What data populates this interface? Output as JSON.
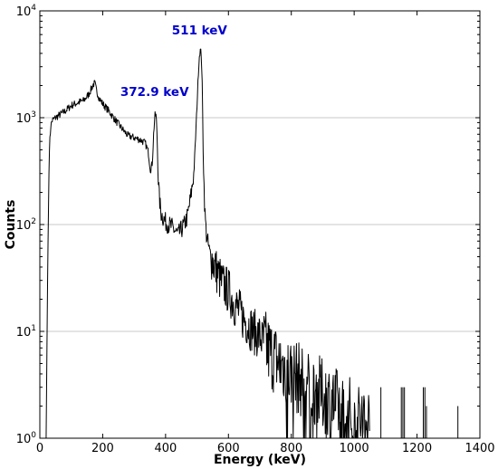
{
  "chart_data": {
    "type": "line",
    "title": "",
    "xlabel": "Energy (keV)",
    "ylabel": "Counts",
    "xlim": [
      0,
      1400
    ],
    "ylim": [
      1,
      10000
    ],
    "yscale": "log",
    "grid": "horizontal",
    "legend": "none",
    "line_color": "#000000",
    "annotation_color": "#0000cc",
    "x_ticks": [
      {
        "value": 0,
        "label": "0"
      },
      {
        "value": 200,
        "label": "200"
      },
      {
        "value": 400,
        "label": "400"
      },
      {
        "value": 600,
        "label": "600"
      },
      {
        "value": 800,
        "label": "800"
      },
      {
        "value": 1000,
        "label": "1000"
      },
      {
        "value": 1200,
        "label": "1200"
      },
      {
        "value": 1400,
        "label": "1400"
      }
    ],
    "y_ticks": [
      {
        "value": 1,
        "mantissa": "10",
        "exp": "0"
      },
      {
        "value": 10,
        "mantissa": "10",
        "exp": "1"
      },
      {
        "value": 100,
        "mantissa": "10",
        "exp": "2"
      },
      {
        "value": 1000,
        "mantissa": "10",
        "exp": "3"
      },
      {
        "value": 10000,
        "mantissa": "10",
        "exp": "4"
      }
    ],
    "annotations": [
      {
        "text": "511 keV",
        "x": 508,
        "y": 6000
      },
      {
        "text": "372.9 keV",
        "x": 365,
        "y": 1600
      }
    ],
    "series": [
      {
        "x": [
          20,
          25,
          30,
          35,
          40,
          50,
          60,
          80,
          100,
          120,
          140,
          155,
          165,
          170,
          175,
          180,
          190,
          200,
          220,
          240,
          260,
          280,
          300,
          320,
          335,
          345,
          352,
          358,
          362,
          366,
          370,
          373,
          376,
          380,
          385,
          390,
          400,
          420,
          440,
          460,
          470,
          480,
          490,
          495,
          500,
          505,
          508,
          511,
          514,
          517,
          520,
          525,
          530,
          540,
          560,
          580,
          600,
          620,
          650,
          680,
          700,
          720,
          750,
          780,
          800,
          830,
          850,
          880,
          900,
          930,
          950,
          980,
          1000,
          1020,
          1050
        ],
        "y": [
          1,
          40,
          500,
          850,
          950,
          1000,
          1050,
          1150,
          1300,
          1380,
          1450,
          1650,
          1900,
          2050,
          2100,
          1800,
          1500,
          1350,
          1150,
          950,
          800,
          680,
          650,
          620,
          580,
          480,
          320,
          380,
          700,
          1050,
          1050,
          700,
          300,
          180,
          130,
          120,
          105,
          95,
          80,
          100,
          120,
          180,
          300,
          600,
          1300,
          2900,
          4000,
          4300,
          3800,
          1800,
          400,
          130,
          80,
          55,
          38,
          28,
          24,
          18,
          13,
          10,
          9,
          7,
          5.5,
          4.5,
          4,
          3.5,
          3,
          2.8,
          2.5,
          2.2,
          2,
          1.8,
          1.6,
          1.5,
          1.4
        ]
      }
    ],
    "spikes": [
      {
        "x": 1085,
        "y": 3
      },
      {
        "x": 1150,
        "y": 3
      },
      {
        "x": 1155,
        "y": 3
      },
      {
        "x": 1160,
        "y": 3
      },
      {
        "x": 1220,
        "y": 3
      },
      {
        "x": 1225,
        "y": 3
      },
      {
        "x": 1230,
        "y": 2
      },
      {
        "x": 1330,
        "y": 2
      }
    ]
  }
}
